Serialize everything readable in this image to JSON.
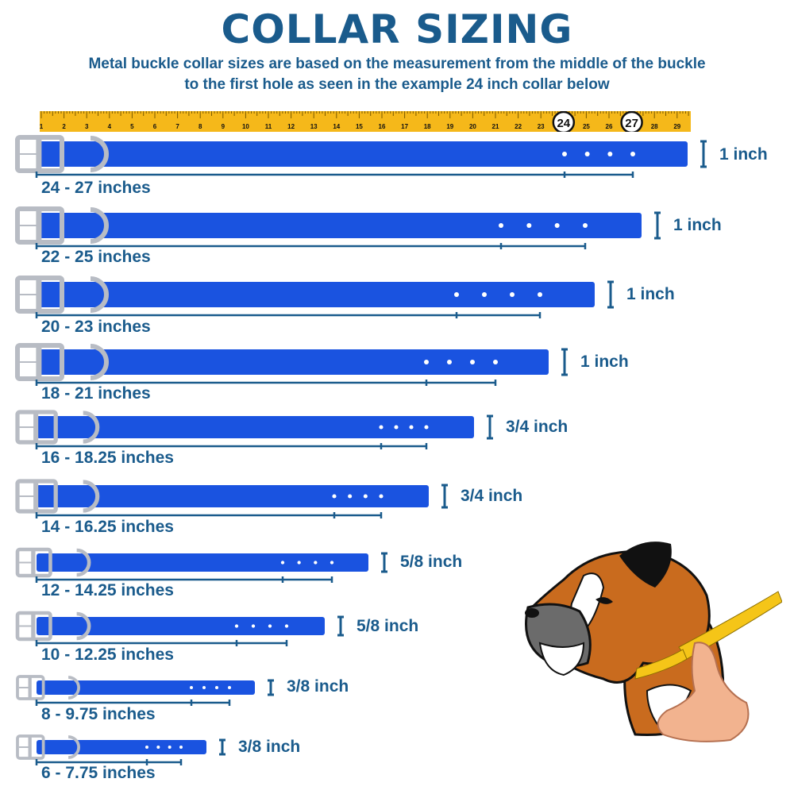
{
  "header": {
    "title": "COLLAR SIZING",
    "subtitle_line1": "Metal buckle collar sizes are based on the measurement from the middle of the buckle",
    "subtitle_line2": "to the first hole as seen in the example 24 inch collar below"
  },
  "ruler": {
    "start": 1,
    "end": 29,
    "highlighted": [
      24,
      27
    ],
    "color": "#f5b81a"
  },
  "colors": {
    "strap": "#1a53e0",
    "text": "#1a5b8c",
    "buckle": "#b8bcc4"
  },
  "collars": [
    {
      "size_label": "24 - 27 inches",
      "width_label": "1 inch"
    },
    {
      "size_label": "22 - 25 inches",
      "width_label": "1 inch"
    },
    {
      "size_label": "20 - 23 inches",
      "width_label": "1 inch"
    },
    {
      "size_label": "18 - 21 inches",
      "width_label": "1 inch"
    },
    {
      "size_label": "16 - 18.25 inches",
      "width_label": "3/4 inch"
    },
    {
      "size_label": "14 - 16.25 inches",
      "width_label": "3/4 inch"
    },
    {
      "size_label": "12 - 14.25 inches",
      "width_label": "5/8 inch"
    },
    {
      "size_label": "10 - 12.25 inches",
      "width_label": "5/8 inch"
    },
    {
      "size_label": "8 - 9.75 inches",
      "width_label": "3/8 inch"
    },
    {
      "size_label": "6 - 7.75 inches",
      "width_label": "3/8 inch"
    }
  ],
  "illustration": {
    "icon": "boxer-dog-measuring-neck-icon"
  }
}
